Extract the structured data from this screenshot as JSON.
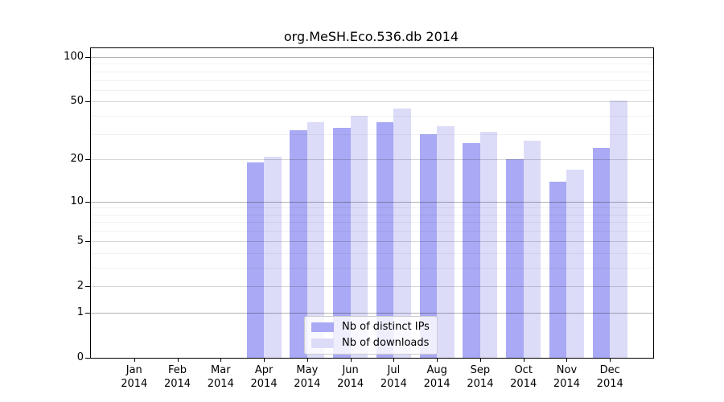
{
  "chart_data": {
    "type": "bar",
    "title": "org.MeSH.Eco.536.db 2014",
    "categories": [
      "Jan",
      "Feb",
      "Mar",
      "Apr",
      "May",
      "Jun",
      "Jul",
      "Aug",
      "Sep",
      "Oct",
      "Nov",
      "Dec"
    ],
    "category_sublabel": "2014",
    "series": [
      {
        "name": "Nb of distinct IPs",
        "color": "#a9a9f5",
        "values": [
          0,
          0,
          0,
          19,
          32,
          33,
          36,
          30,
          26,
          20,
          14,
          24
        ]
      },
      {
        "name": "Nb of downloads",
        "color": "#dcdcf9",
        "values": [
          0,
          0,
          0,
          21,
          36,
          40,
          45,
          34,
          31,
          27,
          17,
          51
        ]
      }
    ],
    "xlabel": "",
    "ylabel": "",
    "ylim": [
      0,
      115
    ],
    "yscale": "log10(value+1)",
    "yticks": [
      0,
      1,
      2,
      5,
      10,
      20,
      50,
      100
    ],
    "yticks_emphasis": [
      1,
      10,
      100
    ],
    "yminorticks": [
      3,
      4,
      6,
      7,
      8,
      9,
      30,
      40,
      60,
      70,
      80,
      90
    ],
    "grid": true,
    "legend_position": "bottom-center"
  },
  "colors": {
    "background": "#ffffff",
    "axis": "#000000",
    "grid_emphasis": "rgba(0,0,0,0.30)",
    "grid_labeled": "rgba(0,0,0,0.16)",
    "grid_minor": "rgba(0,0,0,0.055)",
    "legend_border": "#cccccc",
    "legend_background": "rgba(255,255,255,0.8)"
  }
}
